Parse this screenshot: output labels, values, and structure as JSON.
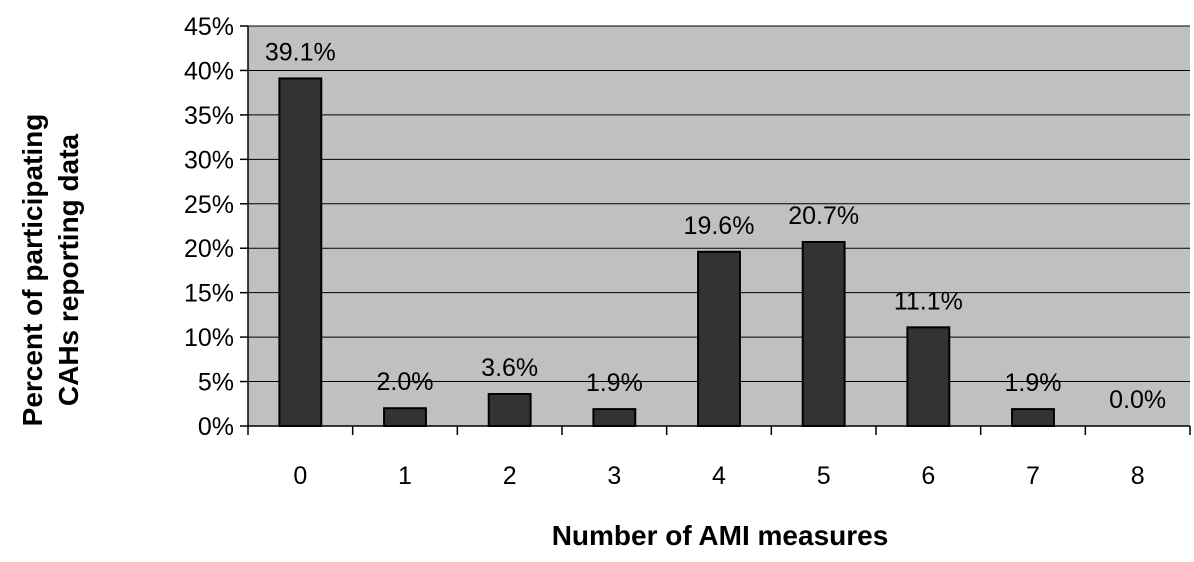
{
  "chart_data": {
    "type": "bar",
    "title": "",
    "xlabel": "Number of AMI measures",
    "ylabel_lines": [
      "Percent of participating",
      "CAHs reporting data"
    ],
    "categories": [
      "0",
      "1",
      "2",
      "3",
      "4",
      "5",
      "6",
      "7",
      "8"
    ],
    "values": [
      39.1,
      2.0,
      3.6,
      1.9,
      19.6,
      20.7,
      11.1,
      1.9,
      0.0
    ],
    "data_labels": [
      "39.1%",
      "2.0%",
      "3.6%",
      "1.9%",
      "19.6%",
      "20.7%",
      "11.1%",
      "1.9%",
      "0.0%"
    ],
    "ylim": [
      0,
      45
    ],
    "yticks": [
      "0%",
      "5%",
      "10%",
      "15%",
      "20%",
      "25%",
      "30%",
      "35%",
      "40%",
      "45%"
    ],
    "grid": true,
    "legend": "none",
    "colors": {
      "plot_background": "#c0c0c0",
      "bar_fill": "#333333",
      "bar_stroke": "#000000",
      "grid_line": "#000000"
    }
  }
}
